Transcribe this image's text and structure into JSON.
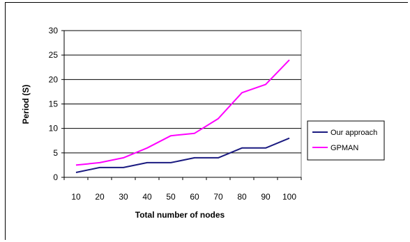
{
  "chart_data": {
    "type": "line",
    "title": "",
    "xlabel": "Total number of nodes",
    "ylabel": "Period (S)",
    "x": [
      10,
      20,
      30,
      40,
      50,
      60,
      70,
      80,
      90,
      100
    ],
    "ylim": [
      0,
      30
    ],
    "yticks": [
      0,
      5,
      10,
      15,
      20,
      25,
      30
    ],
    "grid": true,
    "legend_position": "right",
    "series": [
      {
        "name": "Our approach",
        "color": "#1a1a80",
        "values": [
          1,
          2,
          2,
          3,
          3,
          4,
          4,
          6,
          6,
          8
        ]
      },
      {
        "name": "GPMAN",
        "color": "#ff00ff",
        "values": [
          2.5,
          3,
          4,
          6,
          8.5,
          9,
          12,
          17.3,
          19,
          24
        ]
      }
    ]
  }
}
